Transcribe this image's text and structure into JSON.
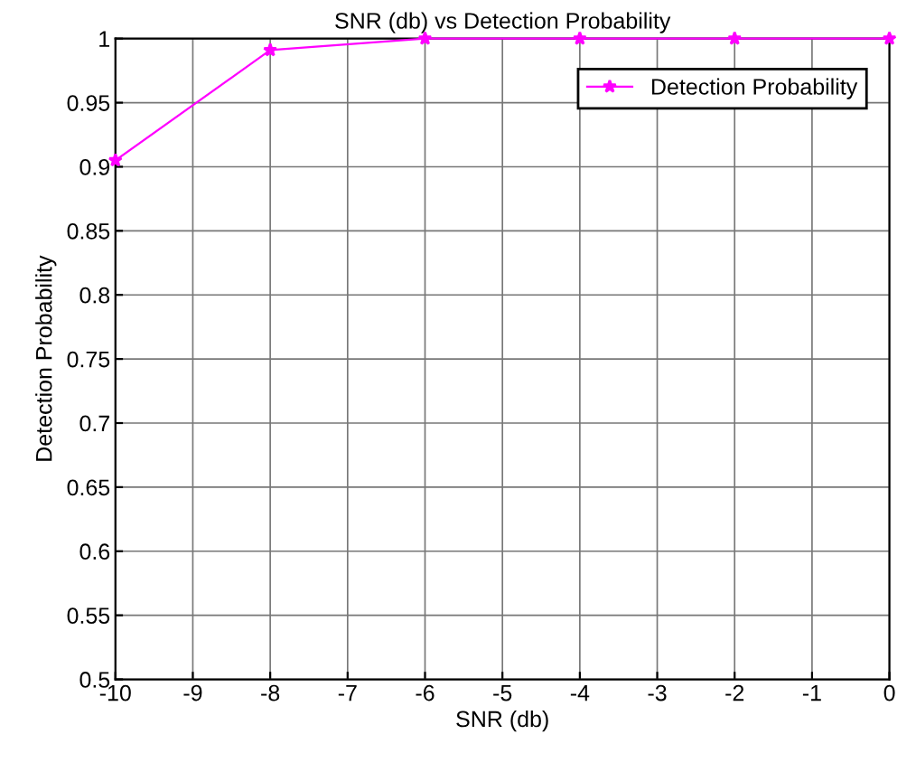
{
  "chart_data": {
    "type": "line",
    "title": "SNR (db) vs Detection Probability",
    "xlabel": "SNR (db)",
    "ylabel": "Detection Probability",
    "x": [
      -10,
      -8,
      -6,
      -4,
      -2,
      0
    ],
    "series": [
      {
        "name": "Detection Probability",
        "color": "#ff00ff",
        "values": [
          0.905,
          0.991,
          1,
          1,
          1,
          1
        ]
      }
    ],
    "xlim": [
      -10,
      0
    ],
    "xticks": [
      {
        "value": -10,
        "label": "-10"
      },
      {
        "value": -9,
        "label": "-9"
      },
      {
        "value": -8,
        "label": "-8"
      },
      {
        "value": -7,
        "label": "-7"
      },
      {
        "value": -6,
        "label": "-6"
      },
      {
        "value": -5,
        "label": "-5"
      },
      {
        "value": -4,
        "label": "-4"
      },
      {
        "value": -3,
        "label": "-3"
      },
      {
        "value": -2,
        "label": "-2"
      },
      {
        "value": -1,
        "label": "-1"
      },
      0
    ],
    "ylim": [
      0.5,
      1
    ],
    "yticks": [
      0.5,
      0.55,
      0.6,
      0.65,
      0.7,
      0.75,
      0.8,
      0.85,
      0.9,
      0.95,
      1
    ],
    "grid": true,
    "legend": "top right",
    "marker": "star",
    "line_style": "solid"
  }
}
